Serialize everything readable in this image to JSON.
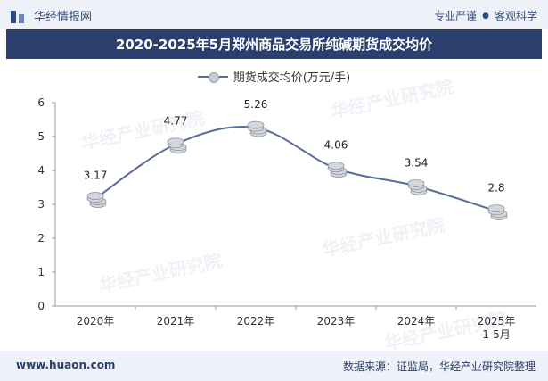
{
  "header": {
    "brand": "华经情报网",
    "slogan_left": "专业严谨",
    "slogan_dot": "●",
    "slogan_right": "客观科学"
  },
  "title": "2020-2025年5月郑州商品交易所纯碱期货成交均价",
  "footer": {
    "url": "www.huaon.com",
    "source": "数据来源：证监局，华经产业研究院整理"
  },
  "watermark": "华经产业研究院",
  "chart_data": {
    "type": "line",
    "categories": [
      "2020年",
      "2021年",
      "2022年",
      "2023年",
      "2024年",
      "2025年\n1-5月"
    ],
    "series": [
      {
        "name": "期货成交均价(万元/手)",
        "values": [
          3.17,
          4.77,
          5.26,
          4.06,
          3.54,
          2.8
        ],
        "color": "#5a6c9c"
      }
    ],
    "data_labels": [
      "3.17",
      "4.77",
      "5.26",
      "4.06",
      "3.54",
      "2.8"
    ],
    "ylim": [
      0,
      6
    ],
    "yticks": [
      0,
      1,
      2,
      3,
      4,
      5,
      6
    ],
    "grid": false,
    "legend_position": "top-center",
    "marker": "coin-stack"
  }
}
